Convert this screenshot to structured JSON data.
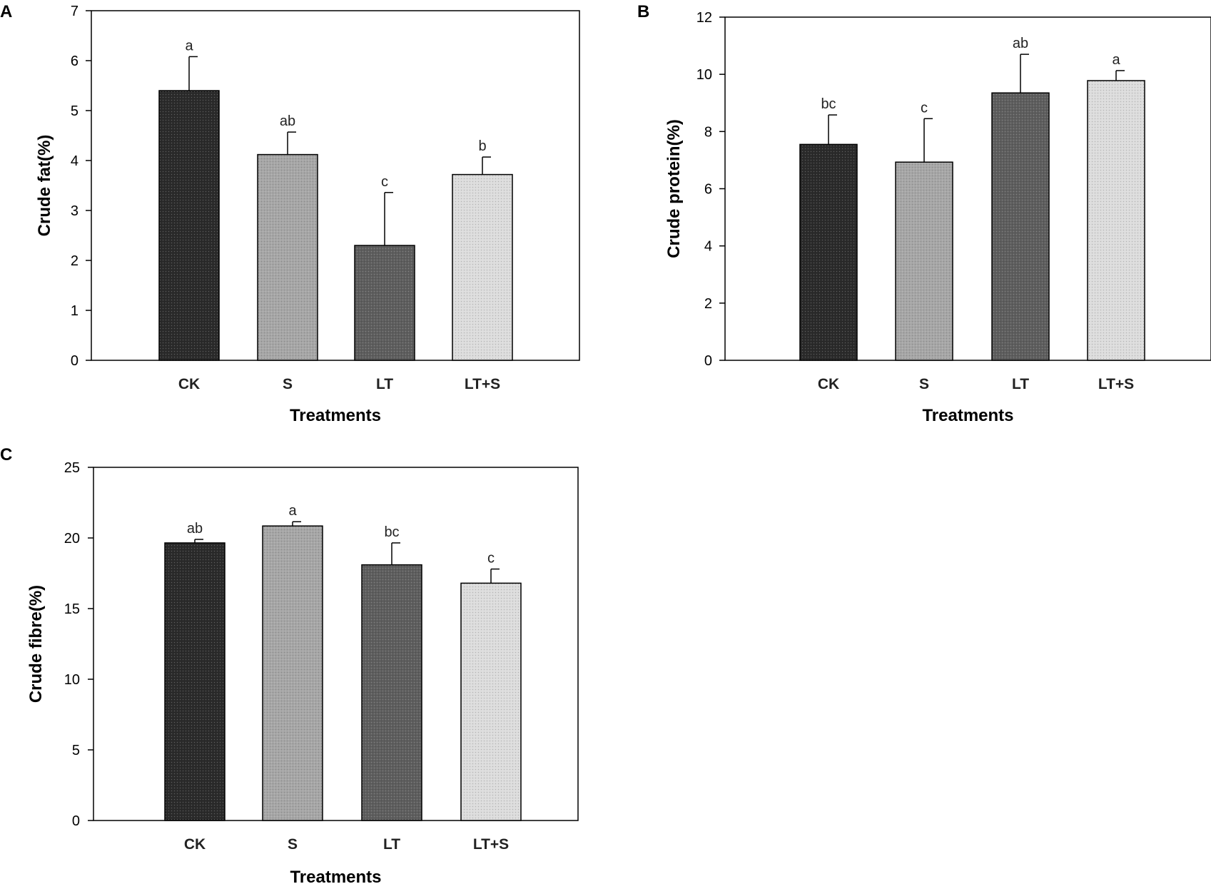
{
  "chart_data": [
    {
      "panel": "A",
      "type": "bar",
      "categories": [
        "CK",
        "S",
        "LT",
        "LT+S"
      ],
      "values": [
        5.4,
        4.12,
        2.3,
        3.72
      ],
      "errors": [
        0.68,
        0.45,
        1.06,
        0.35
      ],
      "significance": [
        "a",
        "ab",
        "c",
        "b"
      ],
      "xlabel": "Treatments",
      "ylabel": "Crude fat(%)",
      "ylim": [
        0,
        7
      ],
      "yticks": [
        0,
        1,
        2,
        3,
        4,
        5,
        6,
        7
      ],
      "bar_colors": [
        "#2b2b2b",
        "#a6a6a6",
        "#5e5e5e",
        "#dcdcdc"
      ]
    },
    {
      "panel": "B",
      "type": "bar",
      "categories": [
        "CK",
        "S",
        "LT",
        "LT+S"
      ],
      "values": [
        7.55,
        6.93,
        9.35,
        9.78
      ],
      "errors": [
        1.03,
        1.52,
        1.35,
        0.35
      ],
      "significance": [
        "bc",
        "c",
        "ab",
        "a"
      ],
      "xlabel": "Treatments",
      "ylabel": "Crude protein(%)",
      "ylim": [
        0,
        12
      ],
      "yticks": [
        0,
        2,
        4,
        6,
        8,
        10,
        12
      ],
      "bar_colors": [
        "#2b2b2b",
        "#a6a6a6",
        "#5e5e5e",
        "#dcdcdc"
      ]
    },
    {
      "panel": "C",
      "type": "bar",
      "categories": [
        "CK",
        "S",
        "LT",
        "LT+S"
      ],
      "values": [
        19.65,
        20.85,
        18.1,
        16.8
      ],
      "errors": [
        0.25,
        0.3,
        1.55,
        1.0
      ],
      "significance": [
        "ab",
        "a",
        "bc",
        "c"
      ],
      "xlabel": "Treatments",
      "ylabel": "Crude fibre(%)",
      "ylim": [
        0,
        25
      ],
      "yticks": [
        0,
        5,
        10,
        15,
        20,
        25
      ],
      "bar_colors": [
        "#2b2b2b",
        "#a6a6a6",
        "#5e5e5e",
        "#dcdcdc"
      ]
    }
  ]
}
